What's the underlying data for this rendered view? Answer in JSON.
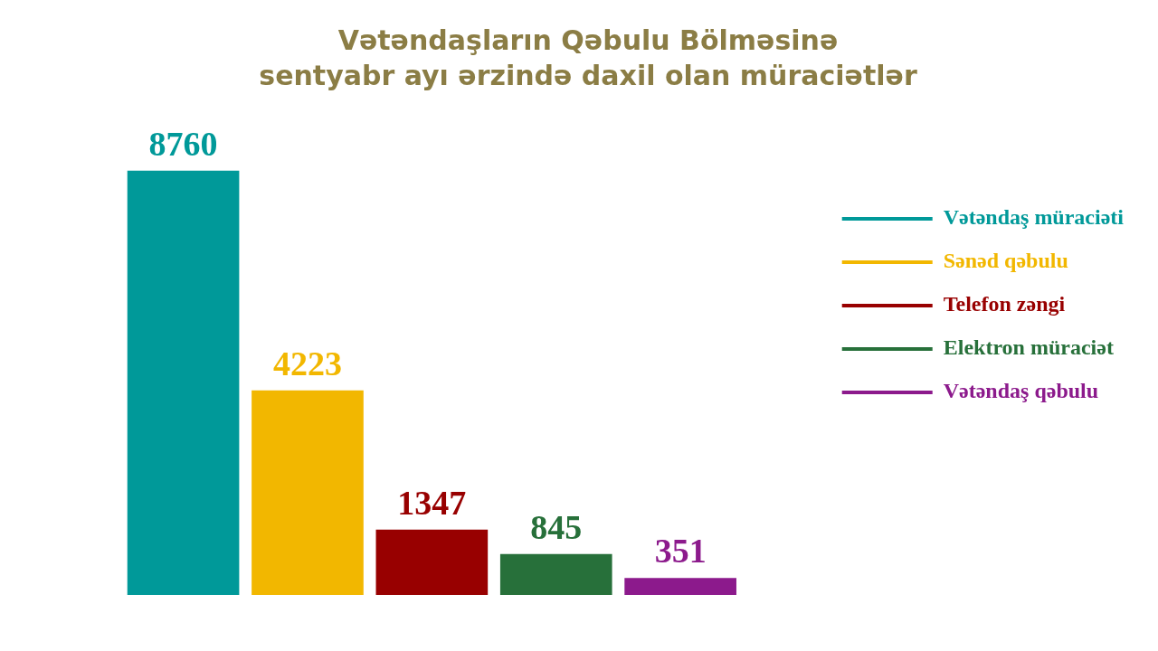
{
  "chart_data": {
    "type": "bar",
    "title": "Vətəndaşların Qəbulu Bölməsinə\nsentyabr ayı ərzində daxil olan müraciətlər",
    "categories": [
      null
    ],
    "series": [
      {
        "name": "Vətəndaş müraciəti",
        "color": "#009999",
        "values": [
          8760
        ]
      },
      {
        "name": "Sənəd qəbulu",
        "color": "#f2b700",
        "values": [
          4223
        ]
      },
      {
        "name": "Telefon zəngi",
        "color": "#980000",
        "values": [
          1347
        ]
      },
      {
        "name": "Elektron müraciət",
        "color": "#27703a",
        "values": [
          845
        ]
      },
      {
        "name": "Vətəndaş qəbulu",
        "color": "#8c1a8c",
        "values": [
          351
        ]
      }
    ],
    "data_labels": true,
    "legend": "right",
    "tick_labels": false
  }
}
